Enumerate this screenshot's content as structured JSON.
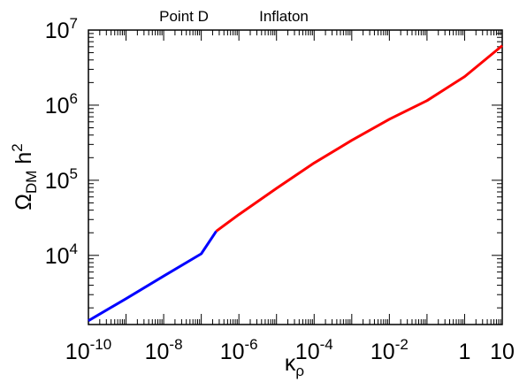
{
  "chart_data": {
    "type": "line",
    "annotations": [
      "Point D",
      "Inflaton"
    ],
    "xlabel": {
      "base": "κ",
      "sub": "ρ"
    },
    "ylabel": {
      "base": "Ω",
      "sub": "DM",
      "tail": " h",
      "sup": "2"
    },
    "x_scale": "log",
    "y_scale": "log",
    "xlim": [
      1e-10,
      10
    ],
    "ylim": [
      1200,
      10000000
    ],
    "x_ticks": [
      {
        "value": 1e-10,
        "base": "10",
        "exp": "-10"
      },
      {
        "value": 1e-08,
        "base": "10",
        "exp": "-8"
      },
      {
        "value": 1e-06,
        "base": "10",
        "exp": "-6"
      },
      {
        "value": 0.0001,
        "base": "10",
        "exp": "-4"
      },
      {
        "value": 0.01,
        "base": "10",
        "exp": "-2"
      },
      {
        "value": 1,
        "base": "1",
        "exp": ""
      },
      {
        "value": 10,
        "base": "10",
        "exp": ""
      }
    ],
    "y_ticks": [
      {
        "value": 10000,
        "base": "10",
        "exp": "4"
      },
      {
        "value": 100000,
        "base": "10",
        "exp": "5"
      },
      {
        "value": 1000000,
        "base": "10",
        "exp": "6"
      },
      {
        "value": 10000000,
        "base": "10",
        "exp": "7"
      }
    ],
    "grid": false,
    "series": [
      {
        "color": "#0000ff",
        "x": [
          1e-10,
          1e-09,
          1e-08,
          1e-07,
          2.5e-07
        ],
        "y": [
          1350,
          2650,
          5300,
          10500,
          21000
        ]
      },
      {
        "color": "#ff0000",
        "x": [
          2.5e-07,
          1e-06,
          1e-05,
          0.0001,
          0.001,
          0.01,
          0.1,
          1,
          10
        ],
        "y": [
          21000,
          35000,
          78000,
          170000,
          340000,
          650000,
          1150000,
          2400000,
          6200000
        ]
      }
    ]
  }
}
